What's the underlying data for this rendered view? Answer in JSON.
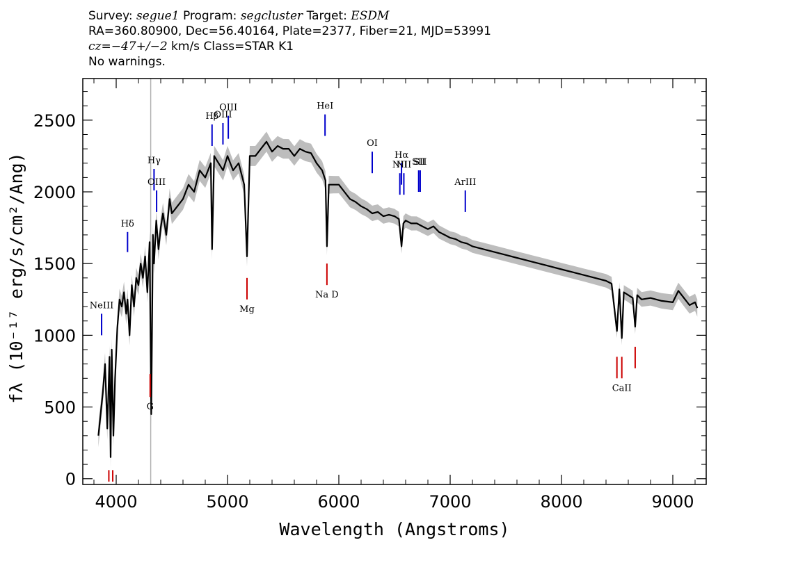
{
  "header": {
    "survey_label": "Survey:",
    "survey": "segue1",
    "program_label": "Program:",
    "program": "segcluster",
    "target_label": "Target:",
    "target": "ESDM",
    "coords": "RA=360.80900, Dec=56.40164, Plate=2377, Fiber=21, MJD=53991",
    "cz_label": "cz=−47+/−2",
    "cz_rest": " km/s Class=STAR K1",
    "warnings": "No warnings."
  },
  "colors": {
    "spectrum": "#000000",
    "error_band": "#bdbdbd",
    "emission": "#0000cc",
    "absorption": "#cc0000",
    "marker": "#b0b0b0"
  },
  "chart_data": {
    "type": "line",
    "xlabel": "Wavelength (Angstroms)",
    "ylabel": "fλ (10⁻¹⁷ erg/s/cm²/Ang)",
    "xlim": [
      3700,
      9300
    ],
    "ylim": [
      -40,
      2790
    ],
    "xticks": [
      4000,
      5000,
      6000,
      7000,
      8000,
      9000
    ],
    "yticks": [
      0,
      500,
      1000,
      1500,
      2000,
      2500
    ],
    "xtick_labels": [
      "4000",
      "5000",
      "6000",
      "7000",
      "8000",
      "9000"
    ],
    "ytick_labels": [
      "0",
      "500",
      "1000",
      "1500",
      "2000",
      "2500"
    ],
    "vertical_marker_x": 4310,
    "series": [
      {
        "name": "flux",
        "x": [
          3840,
          3860,
          3880,
          3900,
          3920,
          3940,
          3950,
          3960,
          3975,
          3990,
          4010,
          4030,
          4050,
          4070,
          4090,
          4102,
          4120,
          4140,
          4160,
          4180,
          4200,
          4220,
          4240,
          4260,
          4280,
          4300,
          4315,
          4330,
          4340,
          4360,
          4380,
          4400,
          4420,
          4450,
          4480,
          4500,
          4550,
          4600,
          4650,
          4700,
          4750,
          4800,
          4850,
          4861,
          4880,
          4920,
          4960,
          5000,
          5050,
          5100,
          5150,
          5175,
          5200,
          5250,
          5300,
          5350,
          5400,
          5450,
          5500,
          5550,
          5600,
          5650,
          5700,
          5750,
          5800,
          5850,
          5880,
          5893,
          5910,
          5950,
          6000,
          6050,
          6100,
          6150,
          6200,
          6250,
          6300,
          6350,
          6400,
          6450,
          6500,
          6540,
          6563,
          6580,
          6600,
          6650,
          6700,
          6750,
          6800,
          6850,
          6900,
          6950,
          7000,
          7050,
          7100,
          7150,
          7200,
          7300,
          7400,
          7500,
          7600,
          7700,
          7800,
          7900,
          8000,
          8100,
          8200,
          8300,
          8400,
          8450,
          8498,
          8520,
          8542,
          8560,
          8600,
          8640,
          8662,
          8680,
          8720,
          8800,
          8900,
          9000,
          9050,
          9100,
          9150,
          9200,
          9220
        ],
        "y": [
          300,
          450,
          600,
          800,
          350,
          850,
          150,
          900,
          300,
          700,
          1050,
          1250,
          1200,
          1300,
          1150,
          1250,
          1000,
          1350,
          1200,
          1400,
          1350,
          1500,
          1400,
          1550,
          1300,
          1650,
          450,
          1700,
          1500,
          1800,
          1600,
          1750,
          1850,
          1700,
          1950,
          1850,
          1900,
          1950,
          2050,
          2000,
          2150,
          2100,
          2200,
          1600,
          2250,
          2200,
          2150,
          2250,
          2150,
          2200,
          2050,
          1550,
          2250,
          2250,
          2300,
          2350,
          2280,
          2320,
          2300,
          2300,
          2250,
          2300,
          2280,
          2270,
          2200,
          2150,
          2080,
          1620,
          2050,
          2050,
          2050,
          2000,
          1950,
          1930,
          1900,
          1880,
          1850,
          1860,
          1830,
          1840,
          1830,
          1810,
          1620,
          1780,
          1800,
          1780,
          1780,
          1760,
          1740,
          1760,
          1720,
          1700,
          1680,
          1670,
          1650,
          1640,
          1620,
          1600,
          1580,
          1560,
          1540,
          1520,
          1500,
          1480,
          1460,
          1440,
          1420,
          1400,
          1380,
          1360,
          1030,
          1320,
          980,
          1300,
          1280,
          1260,
          1060,
          1280,
          1250,
          1260,
          1240,
          1230,
          1310,
          1260,
          1210,
          1230,
          1190
        ]
      },
      {
        "name": "error",
        "x": [
          3840,
          4200,
          4600,
          5000,
          5400,
          5800,
          6200,
          6600,
          7000,
          7400,
          7800,
          8200,
          8600,
          9000,
          9220
        ],
        "y": [
          80,
          70,
          75,
          70,
          70,
          65,
          55,
          50,
          45,
          45,
          45,
          45,
          50,
          55,
          60
        ]
      }
    ],
    "lines": [
      {
        "label": "NeIII",
        "x": 3869,
        "y1": 1000,
        "y2": 1150,
        "color": "blue"
      },
      {
        "label": "Hδ",
        "x": 4102,
        "y1": 1580,
        "y2": 1720,
        "color": "blue"
      },
      {
        "label": "Hγ",
        "x": 4340,
        "y1": 2010,
        "y2": 2160,
        "color": "blue"
      },
      {
        "label": "OIII",
        "x": 4363,
        "y1": 1860,
        "y2": 2010,
        "color": "blue"
      },
      {
        "label": "Hβ",
        "x": 4861,
        "y1": 2320,
        "y2": 2470,
        "color": "blue"
      },
      {
        "label": "OIII",
        "x": 4959,
        "y1": 2330,
        "y2": 2480,
        "color": "blue"
      },
      {
        "label": "OIII",
        "x": 5007,
        "y1": 2370,
        "y2": 2530,
        "color": "blue"
      },
      {
        "label": "HeI",
        "x": 5876,
        "y1": 2390,
        "y2": 2540,
        "color": "blue"
      },
      {
        "label": "OI",
        "x": 6300,
        "y1": 2130,
        "y2": 2280,
        "color": "blue"
      },
      {
        "label": "NII",
        "x": 6548,
        "y1": 1980,
        "y2": 2130,
        "color": "blue"
      },
      {
        "label": "Hα",
        "x": 6563,
        "y1": 2050,
        "y2": 2200,
        "color": "blue"
      },
      {
        "label": "NII",
        "x": 6584,
        "y1": 1980,
        "y2": 2130,
        "color": "blue"
      },
      {
        "label": "SII",
        "x": 6717,
        "y1": 2000,
        "y2": 2150,
        "color": "blue"
      },
      {
        "label": "SII",
        "x": 6731,
        "y1": 2000,
        "y2": 2150,
        "color": "blue"
      },
      {
        "label": "ArIII",
        "x": 7136,
        "y1": 1860,
        "y2": 2010,
        "color": "blue"
      },
      {
        "label": "",
        "x": 3934,
        "y1": -20,
        "y2": 60,
        "color": "red"
      },
      {
        "label": "",
        "x": 3969,
        "y1": -20,
        "y2": 60,
        "color": "red"
      },
      {
        "label": "G",
        "x": 4305,
        "y1": 570,
        "y2": 730,
        "color": "red"
      },
      {
        "label": "Mg",
        "x": 5175,
        "y1": 1250,
        "y2": 1400,
        "color": "red"
      },
      {
        "label": "Na D",
        "x": 5893,
        "y1": 1350,
        "y2": 1500,
        "color": "red"
      },
      {
        "label": "",
        "x": 8498,
        "y1": 700,
        "y2": 850,
        "color": "red"
      },
      {
        "label": "CaII",
        "x": 8542,
        "y1": 700,
        "y2": 850,
        "color": "red"
      },
      {
        "label": "",
        "x": 8662,
        "y1": 770,
        "y2": 920,
        "color": "red"
      }
    ]
  }
}
